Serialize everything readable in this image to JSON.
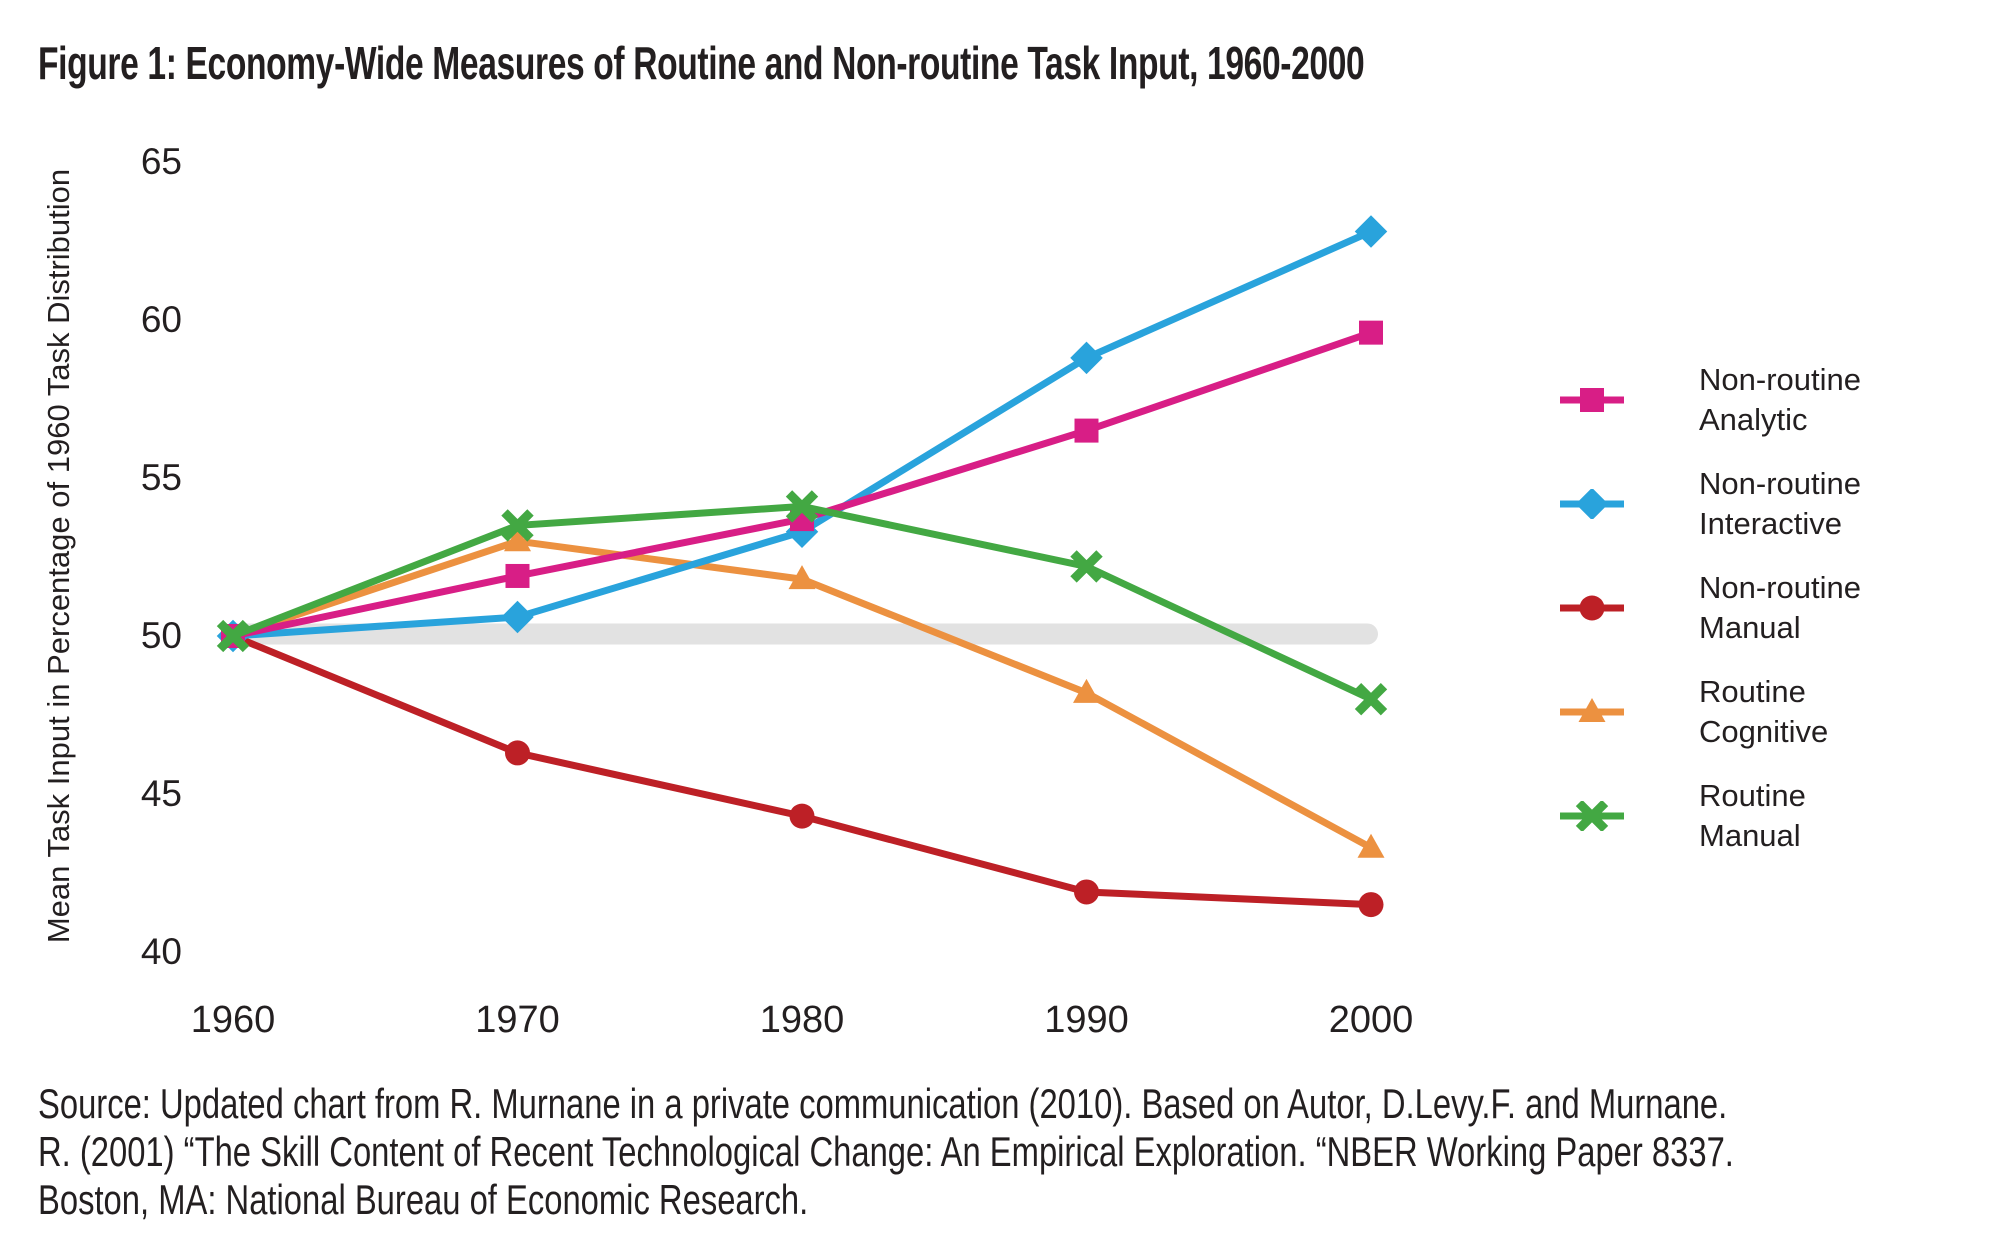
{
  "title": "Figure 1: Economy-Wide Measures of Routine and Non-routine Task Input, 1960-2000",
  "colors": {
    "text": "#231F20",
    "baseline_band": "#E2E2E2",
    "analytic": "#D81E86",
    "interactive": "#29A3DC",
    "nonroutine_manual": "#BD2026",
    "routine_cognitive": "#EC9140",
    "routine_manual": "#43A843"
  },
  "chart_data": {
    "type": "line",
    "title": "Figure 1: Economy-Wide Measures of Routine and Non-routine Task Input, 1960-2000",
    "x": [
      1960,
      1970,
      1980,
      1990,
      2000
    ],
    "xlabel": "",
    "ylabel": "Mean Task Input in Percentage of 1960 Task Distribution",
    "ylim": [
      40,
      65
    ],
    "yticks": [
      65,
      60,
      55,
      50,
      45,
      40
    ],
    "grid": false,
    "legend_position": "right",
    "baseline_band": {
      "value": 50,
      "color": "#E2E2E2"
    },
    "series": [
      {
        "name": "Non-routine Analytic",
        "legend_lines": [
          "Non-routine",
          "Analytic"
        ],
        "color": "#D81E86",
        "marker": "square",
        "values": [
          50,
          51.9,
          53.7,
          56.5,
          59.6
        ]
      },
      {
        "name": "Non-routine Interactive",
        "legend_lines": [
          "Non-routine",
          "Interactive"
        ],
        "color": "#29A3DC",
        "marker": "diamond",
        "values": [
          50,
          50.6,
          53.3,
          58.8,
          62.8
        ]
      },
      {
        "name": "Non-routine Manual",
        "legend_lines": [
          "Non-routine",
          "Manual"
        ],
        "color": "#BD2026",
        "marker": "circle",
        "values": [
          50,
          46.3,
          44.3,
          41.9,
          41.5
        ]
      },
      {
        "name": "Routine Cognitive",
        "legend_lines": [
          "Routine",
          "Cognitive"
        ],
        "color": "#EC9140",
        "marker": "triangle",
        "values": [
          50,
          53.0,
          51.8,
          48.2,
          43.3
        ]
      },
      {
        "name": "Routine Manual",
        "legend_lines": [
          "Routine",
          "Manual"
        ],
        "color": "#43A843",
        "marker": "x",
        "values": [
          50,
          53.5,
          54.1,
          52.2,
          48.0
        ]
      }
    ],
    "z_order": [
      2,
      3,
      1,
      0,
      4
    ]
  },
  "source": {
    "lines": [
      "Source: Updated chart from R. Murnane in a private communication (2010). Based on Autor, D.Levy.F. and Murnane.",
      "R. (2001) “The Skill Content of Recent Technological Change: An Empirical Exploration. “NBER Working Paper 8337.",
      "Boston, MA: National Bureau of Economic Research."
    ]
  }
}
